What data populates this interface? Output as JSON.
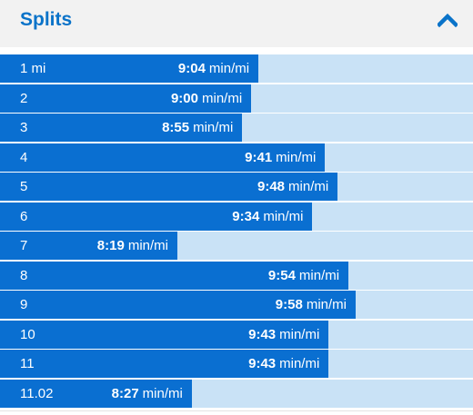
{
  "header": {
    "title": "Splits",
    "toggle_icon": "chevron-up-icon",
    "accent": "#0a73c9"
  },
  "colors": {
    "bar_fill": "#0a6fd1",
    "bar_track": "#c9e2f6",
    "header_bg": "#f2f2f2"
  },
  "splits": [
    {
      "mile": "1 mi",
      "time": "9:04",
      "unit": "min/mi",
      "pace_seconds": 544
    },
    {
      "mile": "2",
      "time": "9:00",
      "unit": "min/mi",
      "pace_seconds": 540
    },
    {
      "mile": "3",
      "time": "8:55",
      "unit": "min/mi",
      "pace_seconds": 535
    },
    {
      "mile": "4",
      "time": "9:41",
      "unit": "min/mi",
      "pace_seconds": 581
    },
    {
      "mile": "5",
      "time": "9:48",
      "unit": "min/mi",
      "pace_seconds": 588
    },
    {
      "mile": "6",
      "time": "9:34",
      "unit": "min/mi",
      "pace_seconds": 574
    },
    {
      "mile": "7",
      "time": "8:19",
      "unit": "min/mi",
      "pace_seconds": 499
    },
    {
      "mile": "8",
      "time": "9:54",
      "unit": "min/mi",
      "pace_seconds": 594
    },
    {
      "mile": "9",
      "time": "9:58",
      "unit": "min/mi",
      "pace_seconds": 598
    },
    {
      "mile": "10",
      "time": "9:43",
      "unit": "min/mi",
      "pace_seconds": 583
    },
    {
      "mile": "11",
      "time": "9:43",
      "unit": "min/mi",
      "pace_seconds": 583
    },
    {
      "mile": "11.02",
      "time": "8:27",
      "unit": "min/mi",
      "pace_seconds": 507
    }
  ]
}
